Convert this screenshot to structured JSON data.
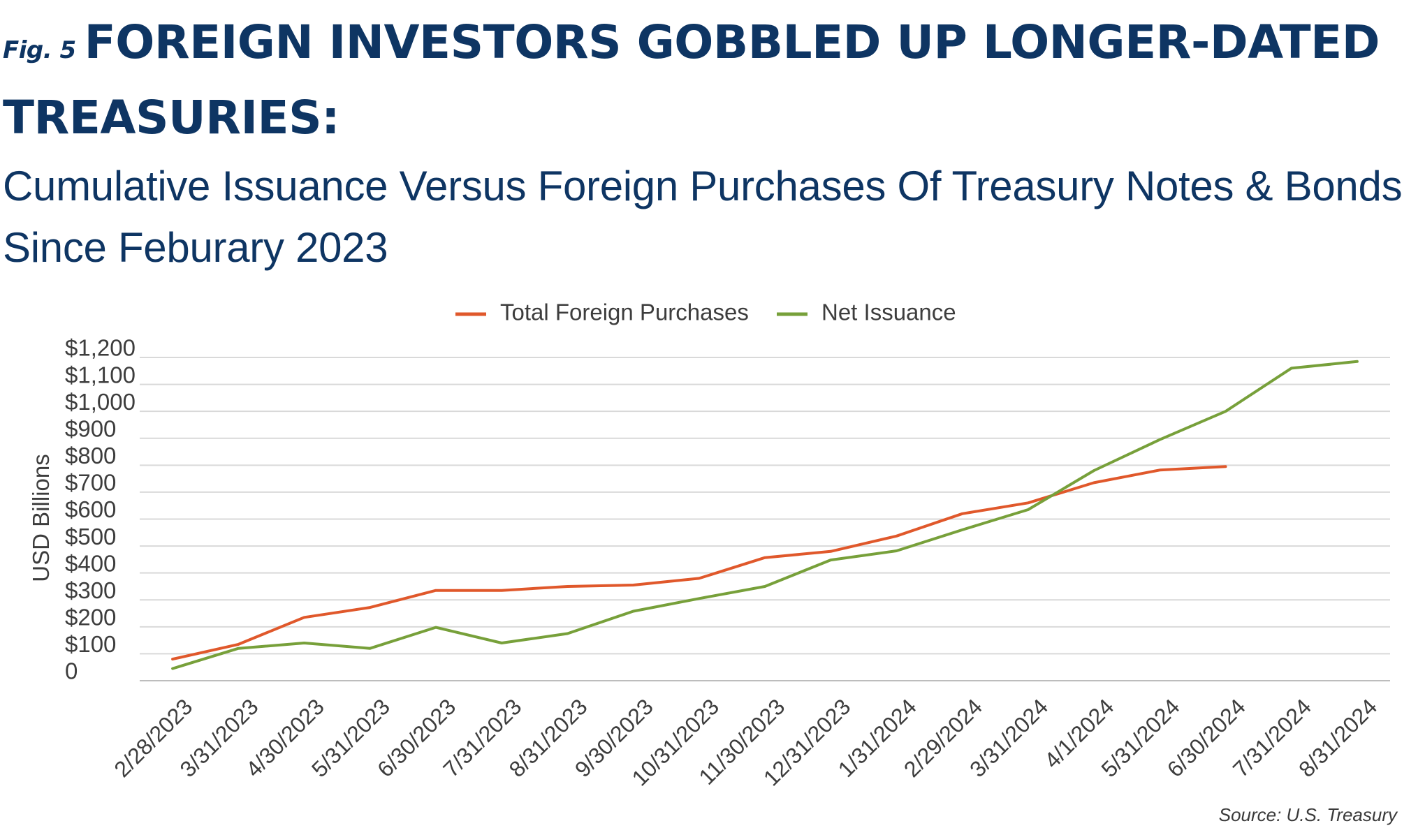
{
  "figure": {
    "fig_label": "Fig. 5",
    "title": "FOREIGN INVESTORS GOBBLED UP LONGER-DATED TREASURIES:",
    "title_line1": "FOREIGN INVESTORS GOBBLED UP LONGER-DATED",
    "title_line2": "TREASURIES:",
    "subtitle_line1": "Cumulative Issuance Versus Foreign Purchases Of Treasury Notes & Bonds",
    "subtitle_line2": "Since Feburary 2023",
    "source": "Source:  U.S. Treasury"
  },
  "chart_data": {
    "type": "line",
    "title": "",
    "xlabel": "",
    "ylabel": "USD Billions",
    "ylim": [
      0,
      1200
    ],
    "y_ticks": [
      0,
      100,
      200,
      300,
      400,
      500,
      600,
      700,
      800,
      900,
      1000,
      1100,
      1200
    ],
    "y_tick_labels": [
      "0",
      "$100",
      "$200",
      "$300",
      "$400",
      "$500",
      "$600",
      "$700",
      "$800",
      "$900",
      "$1,000",
      "$1,100",
      "$1,200"
    ],
    "grid": true,
    "legend_position": "top-center",
    "categories": [
      "2/28/2023",
      "3/31/2023",
      "4/30/2023",
      "5/31/2023",
      "6/30/2023",
      "7/31/2023",
      "8/31/2023",
      "9/30/2023",
      "10/31/2023",
      "11/30/2023",
      "12/31/2023",
      "1/31/2024",
      "2/29/2024",
      "3/31/2024",
      "4/1/2024",
      "5/31/2024",
      "6/30/2024",
      "7/31/2024",
      "8/31/2024"
    ],
    "series": [
      {
        "name": "Total Foreign Purchases",
        "color": "#e0582b",
        "values": [
          80,
          135,
          235,
          272,
          335,
          335,
          350,
          355,
          380,
          457,
          480,
          537,
          620,
          660,
          735,
          782,
          795,
          null,
          null
        ]
      },
      {
        "name": "Net Issuance",
        "color": "#77a03a",
        "values": [
          45,
          120,
          140,
          120,
          198,
          140,
          175,
          258,
          305,
          350,
          448,
          482,
          560,
          635,
          780,
          895,
          1000,
          1160,
          1185
        ]
      }
    ]
  }
}
